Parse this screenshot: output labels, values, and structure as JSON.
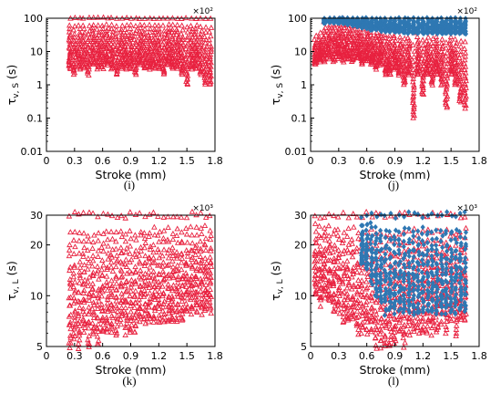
{
  "colors": {
    "red": "#e8213f",
    "blue": "#2f78b3"
  },
  "captions": [
    "(i)",
    "(j)",
    "(k)",
    "(l)"
  ],
  "chart_data": [
    {
      "type": "scatter",
      "panel": "i",
      "xlabel": "Stroke (mm)",
      "ylabel_main": "τ",
      "ylabel_sub": "v, S",
      "ylabel_unit": " (s)",
      "yscale": "log",
      "ylim": [
        0.01,
        100
      ],
      "xlim": [
        0,
        1.8
      ],
      "multiplier": "×10²",
      "xticks": [
        "0",
        "0.3",
        "0.6",
        "0.9",
        "1.2",
        "1.5",
        "1.8"
      ],
      "yticks": [
        "100",
        "10",
        "1",
        "0.1",
        "0.01"
      ],
      "series": [
        {
          "marker": "triangle",
          "color": "red",
          "x": [
            0.25,
            0.3,
            0.35,
            0.4,
            0.45,
            0.5,
            0.55,
            0.6,
            0.65,
            0.7,
            0.75,
            0.8,
            0.85,
            0.9,
            0.95,
            1.0,
            1.05,
            1.1,
            1.15,
            1.2,
            1.25,
            1.3,
            1.35,
            1.4,
            1.45,
            1.5,
            1.55,
            1.6,
            1.65,
            1.7,
            1.75
          ],
          "y_low": [
            3,
            2,
            3,
            3,
            2,
            4,
            3,
            3,
            4,
            3,
            2,
            3,
            3,
            3,
            2,
            4,
            3,
            3,
            3,
            3,
            2,
            4,
            3,
            3,
            2,
            1,
            3,
            3,
            2,
            1,
            1
          ],
          "y_high": [
            100,
            100,
            100,
            100,
            100,
            100,
            100,
            100,
            100,
            100,
            100,
            100,
            100,
            100,
            100,
            100,
            100,
            100,
            100,
            100,
            100,
            100,
            100,
            100,
            100,
            100,
            100,
            100,
            100,
            100,
            100
          ]
        }
      ]
    },
    {
      "type": "scatter",
      "panel": "j",
      "xlabel": "Stroke (mm)",
      "ylabel_main": "τ",
      "ylabel_sub": "v, S",
      "ylabel_unit": " (s)",
      "yscale": "log",
      "ylim": [
        0.01,
        100
      ],
      "xlim": [
        0,
        1.8
      ],
      "multiplier": "×10²",
      "xticks": [
        "0",
        "0.3",
        "0.6",
        "0.9",
        "1.2",
        "1.5",
        "1.8"
      ],
      "yticks": [
        "100",
        "10",
        "1",
        "0.1",
        "0.01"
      ],
      "series": [
        {
          "marker": "triangle",
          "color": "red",
          "x": [
            0.05,
            0.1,
            0.15,
            0.2,
            0.25,
            0.3,
            0.35,
            0.4,
            0.45,
            0.5,
            0.55,
            0.6,
            0.65,
            0.7,
            0.75,
            0.8,
            0.85,
            0.9,
            0.95,
            1.0,
            1.05,
            1.1,
            1.15,
            1.2,
            1.25,
            1.3,
            1.35,
            1.4,
            1.45,
            1.5,
            1.55,
            1.6,
            1.65
          ],
          "y_low": [
            4,
            5,
            5,
            6,
            5,
            6,
            5,
            6,
            5,
            6,
            4,
            5,
            4,
            3,
            4,
            2,
            2,
            3,
            2,
            1,
            2,
            0.1,
            2,
            0.5,
            2,
            1,
            2,
            1,
            0.2,
            2,
            1,
            0.3,
            0.2
          ],
          "y_high": [
            30,
            35,
            80,
            90,
            95,
            95,
            95,
            90,
            90,
            80,
            70,
            60,
            55,
            55,
            50,
            50,
            45,
            45,
            40,
            40,
            40,
            35,
            40,
            40,
            40,
            40,
            40,
            40,
            40,
            40,
            40,
            40,
            40
          ]
        },
        {
          "marker": "diamond",
          "color": "blue",
          "x": [
            0.15,
            0.2,
            0.25,
            0.3,
            0.35,
            0.4,
            0.45,
            0.5,
            0.55,
            0.6,
            0.65,
            0.7,
            0.75,
            0.8,
            0.85,
            0.9,
            0.95,
            1.0,
            1.05,
            1.1,
            1.15,
            1.2,
            1.25,
            1.3,
            1.35,
            1.4,
            1.45,
            1.5,
            1.55,
            1.6,
            1.65
          ],
          "y_low": [
            70,
            75,
            75,
            70,
            70,
            65,
            60,
            55,
            50,
            50,
            45,
            45,
            40,
            40,
            40,
            38,
            38,
            36,
            36,
            35,
            35,
            35,
            35,
            35,
            35,
            35,
            35,
            35,
            35,
            35,
            35
          ],
          "y_high": [
            100,
            100,
            100,
            100,
            100,
            100,
            100,
            100,
            100,
            100,
            100,
            100,
            100,
            100,
            100,
            100,
            100,
            100,
            100,
            100,
            100,
            100,
            100,
            100,
            100,
            100,
            100,
            100,
            100,
            100,
            100
          ]
        }
      ]
    },
    {
      "type": "scatter",
      "panel": "k",
      "xlabel": "Stroke (mm)",
      "ylabel_main": "τ",
      "ylabel_sub": "v, L",
      "ylabel_unit": " (s)",
      "yscale": "log",
      "ylim": [
        5,
        30
      ],
      "xlim": [
        0,
        1.8
      ],
      "multiplier": "×10³",
      "xticks": [
        "0",
        "0.3",
        "0.6",
        "0.9",
        "1.2",
        "1.5",
        "1.8"
      ],
      "yticks": [
        "30",
        "20",
        "10",
        "5"
      ],
      "series": [
        {
          "marker": "triangle",
          "color": "red",
          "x": [
            0.25,
            0.3,
            0.35,
            0.4,
            0.45,
            0.5,
            0.55,
            0.6,
            0.65,
            0.7,
            0.75,
            0.8,
            0.85,
            0.9,
            0.95,
            1.0,
            1.05,
            1.1,
            1.15,
            1.2,
            1.25,
            1.3,
            1.35,
            1.4,
            1.45,
            1.5,
            1.55,
            1.6,
            1.65,
            1.7,
            1.75
          ],
          "y_low": [
            5,
            5.5,
            5,
            6,
            5,
            6,
            5,
            6,
            6,
            6,
            6,
            7,
            6,
            6,
            6,
            7,
            7,
            7,
            7,
            7,
            7,
            7,
            7,
            7,
            7,
            8,
            8,
            8,
            8,
            8,
            8
          ],
          "y_high": [
            30,
            30,
            30,
            30,
            30,
            30,
            30,
            30,
            30,
            30,
            30,
            30,
            30,
            30,
            30,
            30,
            30,
            30,
            30,
            30,
            30,
            30,
            30,
            30,
            30,
            30,
            30,
            30,
            30,
            30,
            30
          ]
        }
      ]
    },
    {
      "type": "scatter",
      "panel": "l",
      "xlabel": "Stroke (mm)",
      "ylabel_main": "τ",
      "ylabel_sub": "v, L",
      "ylabel_unit": " (s)",
      "yscale": "log",
      "ylim": [
        5,
        30
      ],
      "xlim": [
        0,
        1.8
      ],
      "multiplier": "×10³",
      "xticks": [
        "0",
        "0.3",
        "0.6",
        "0.9",
        "1.2",
        "1.5",
        "1.8"
      ],
      "yticks": [
        "30",
        "20",
        "10",
        "5"
      ],
      "series": [
        {
          "marker": "triangle",
          "color": "red",
          "x": [
            0.05,
            0.1,
            0.15,
            0.2,
            0.25,
            0.3,
            0.35,
            0.4,
            0.45,
            0.5,
            0.55,
            0.6,
            0.65,
            0.7,
            0.75,
            0.8,
            0.85,
            0.9,
            0.95,
            1.0,
            1.05,
            1.1,
            1.15,
            1.2,
            1.25,
            1.3,
            1.35,
            1.4,
            1.45,
            1.5,
            1.55,
            1.6,
            1.65
          ],
          "y_low": [
            10,
            9,
            10,
            9,
            8,
            8,
            7,
            7,
            7,
            6,
            6,
            6,
            6,
            5,
            5,
            5,
            5,
            5,
            6,
            5,
            6,
            6,
            6,
            6,
            6,
            6,
            6,
            7,
            6,
            7,
            6,
            7,
            7
          ],
          "y_high": [
            30,
            30,
            30,
            30,
            30,
            30,
            30,
            30,
            30,
            30,
            30,
            30,
            30,
            30,
            30,
            30,
            30,
            30,
            30,
            30,
            30,
            30,
            30,
            30,
            30,
            30,
            30,
            30,
            30,
            30,
            30,
            30,
            30
          ]
        },
        {
          "marker": "diamond",
          "color": "blue",
          "x": [
            0.55,
            0.6,
            0.65,
            0.7,
            0.75,
            0.8,
            0.85,
            0.9,
            0.95,
            1.0,
            1.05,
            1.1,
            1.15,
            1.2,
            1.25,
            1.3,
            1.35,
            1.4,
            1.45,
            1.5,
            1.55,
            1.6,
            1.65
          ],
          "y_low": [
            15,
            14,
            12,
            10,
            9,
            8,
            8,
            8,
            8,
            8,
            8,
            8,
            8,
            8,
            8,
            8,
            8,
            8,
            8,
            8,
            8,
            8,
            8
          ],
          "y_high": [
            30,
            30,
            30,
            30,
            30,
            30,
            30,
            30,
            30,
            30,
            30,
            30,
            30,
            30,
            30,
            30,
            30,
            30,
            30,
            30,
            30,
            30,
            30
          ]
        }
      ]
    }
  ]
}
